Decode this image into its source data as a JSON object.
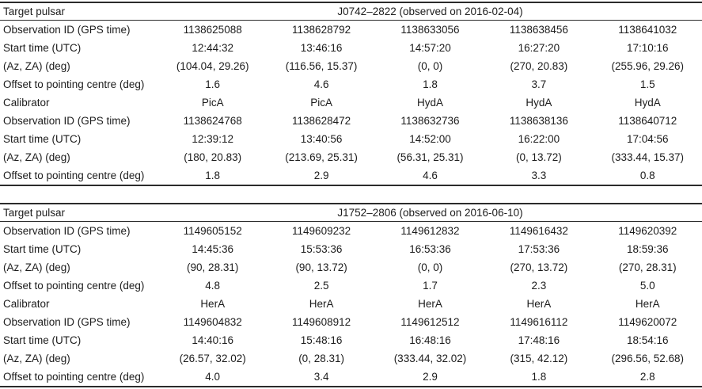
{
  "colors": {
    "background": "#ffffff",
    "text": "#1c1c1c",
    "rule": "#2b2b2b"
  },
  "tables": [
    {
      "target_label": "Target pulsar",
      "target_value": "J0742–2822 (observed on 2016-02-04)",
      "rows": [
        {
          "label": "Observation ID (GPS time)",
          "values": [
            "1138625088",
            "1138628792",
            "1138633056",
            "1138638456",
            "1138641032"
          ]
        },
        {
          "label": "Start time (UTC)",
          "values": [
            "12:44:32",
            "13:46:16",
            "14:57:20",
            "16:27:20",
            "17:10:16"
          ]
        },
        {
          "label": "(Az, ZA) (deg)",
          "values": [
            "(104.04, 29.26)",
            "(116.56, 15.37)",
            "(0, 0)",
            "(270, 20.83)",
            "(255.96, 29.26)"
          ]
        },
        {
          "label": "Offset to pointing centre (deg)",
          "values": [
            "1.6",
            "4.6",
            "1.8",
            "3.7",
            "1.5"
          ]
        },
        {
          "label": "Calibrator",
          "values": [
            "PicA",
            "PicA",
            "HydA",
            "HydA",
            "HydA"
          ]
        },
        {
          "label": "Observation ID (GPS time)",
          "values": [
            "1138624768",
            "1138628472",
            "1138632736",
            "1138638136",
            "1138640712"
          ]
        },
        {
          "label": "Start time (UTC)",
          "values": [
            "12:39:12",
            "13:40:56",
            "14:52:00",
            "16:22:00",
            "17:04:56"
          ]
        },
        {
          "label": "(Az, ZA) (deg)",
          "values": [
            "(180, 20.83)",
            "(213.69, 25.31)",
            "(56.31, 25.31)",
            "(0, 13.72)",
            "(333.44, 15.37)"
          ]
        },
        {
          "label": "Offset to pointing centre (deg)",
          "values": [
            "1.8",
            "2.9",
            "4.6",
            "3.3",
            "0.8"
          ]
        }
      ]
    },
    {
      "target_label": "Target pulsar",
      "target_value": "J1752–2806 (observed on 2016-06-10)",
      "rows": [
        {
          "label": "Observation ID (GPS time)",
          "values": [
            "1149605152",
            "1149609232",
            "1149612832",
            "1149616432",
            "1149620392"
          ]
        },
        {
          "label": "Start time (UTC)",
          "values": [
            "14:45:36",
            "15:53:36",
            "16:53:36",
            "17:53:36",
            "18:59:36"
          ]
        },
        {
          "label": "(Az, ZA) (deg)",
          "values": [
            "(90, 28.31)",
            "(90, 13.72)",
            "(0, 0)",
            "(270, 13.72)",
            "(270, 28.31)"
          ]
        },
        {
          "label": "Offset to pointing centre (deg)",
          "values": [
            "4.8",
            "2.5",
            "1.7",
            "2.3",
            "5.0"
          ]
        },
        {
          "label": "Calibrator",
          "values": [
            "HerA",
            "HerA",
            "HerA",
            "HerA",
            "HerA"
          ]
        },
        {
          "label": "Observation ID (GPS time)",
          "values": [
            "1149604832",
            "1149608912",
            "1149612512",
            "1149616112",
            "1149620072"
          ]
        },
        {
          "label": "Start time (UTC)",
          "values": [
            "14:40:16",
            "15:48:16",
            "16:48:16",
            "17:48:16",
            "18:54:16"
          ]
        },
        {
          "label": "(Az, ZA) (deg)",
          "values": [
            "(26.57, 32.02)",
            "(0, 28.31)",
            "(333.44, 32.02)",
            "(315, 42.12)",
            "(296.56, 52.68)"
          ]
        },
        {
          "label": "Offset to pointing centre (deg)",
          "values": [
            "4.0",
            "3.4",
            "2.9",
            "1.8",
            "2.8"
          ]
        }
      ]
    }
  ]
}
